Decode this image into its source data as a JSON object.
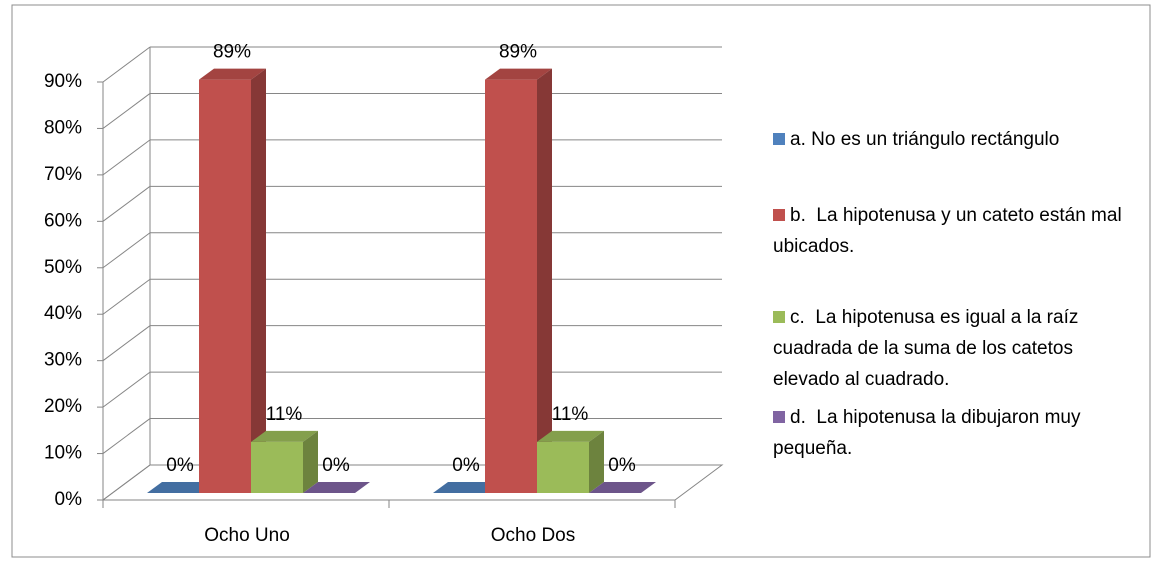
{
  "chart_data": {
    "type": "bar3d",
    "categories": [
      "Ocho Uno",
      "Ocho Dos"
    ],
    "series": [
      {
        "name": "a. No es un triángulo rectángulo",
        "color": "#4f81bd",
        "values": [
          0,
          0
        ],
        "value_labels": [
          "0%",
          "0%"
        ]
      },
      {
        "name": "b.  La hipotenusa y un cateto están mal ubicados.",
        "color": "#c0504d",
        "values": [
          89,
          89
        ],
        "value_labels": [
          "89%",
          "89%"
        ]
      },
      {
        "name": "c.  La hipotenusa es igual a la raíz cuadrada de la suma de los catetos elevado al cuadrado.",
        "color": "#9bbb59",
        "values": [
          11,
          11
        ],
        "value_labels": [
          "11%",
          "11%"
        ]
      },
      {
        "name": "d.  La hipotenusa la dibujaron muy pequeña.",
        "color": "#8064a2",
        "values": [
          0,
          0
        ],
        "value_labels": [
          "0%",
          "0%"
        ]
      }
    ],
    "ylim": [
      0,
      90
    ],
    "yticks": [
      {
        "value": 0,
        "label": "0%"
      },
      {
        "value": 10,
        "label": "10%"
      },
      {
        "value": 20,
        "label": "20%"
      },
      {
        "value": 30,
        "label": "30%"
      },
      {
        "value": 40,
        "label": "40%"
      },
      {
        "value": 50,
        "label": "50%"
      },
      {
        "value": 60,
        "label": "60%"
      },
      {
        "value": 70,
        "label": "70%"
      },
      {
        "value": 80,
        "label": "80%"
      },
      {
        "value": 90,
        "label": "90%"
      }
    ],
    "grid": true,
    "legend": "right"
  }
}
